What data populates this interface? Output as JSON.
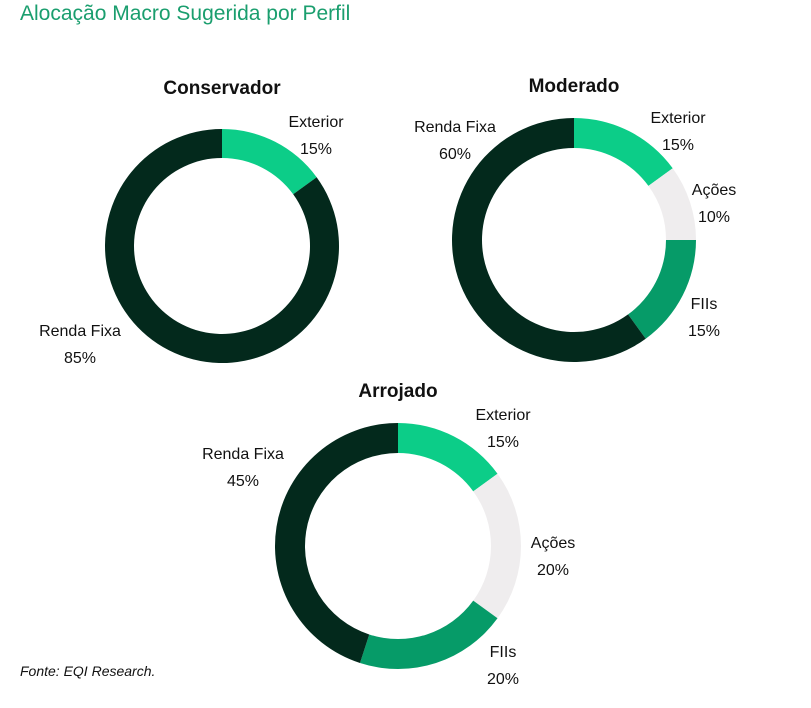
{
  "title": "Alocação Macro Sugerida por Perfil",
  "source": "Fonte: EQI Research.",
  "colors": {
    "Exterior": "#0ccd88",
    "Ações": "#efedee",
    "FIIs": "#069b68",
    "Renda Fixa": "#03291c"
  },
  "chart_data": [
    {
      "type": "pie",
      "title": "Conservador",
      "categories": [
        "Exterior",
        "Renda Fixa"
      ],
      "values": [
        15,
        85
      ],
      "labels": [
        "15%",
        "85%"
      ]
    },
    {
      "type": "pie",
      "title": "Moderado",
      "categories": [
        "Exterior",
        "Ações",
        "FIIs",
        "Renda Fixa"
      ],
      "values": [
        15,
        10,
        15,
        60
      ],
      "labels": [
        "15%",
        "10%",
        "15%",
        "60%"
      ]
    },
    {
      "type": "pie",
      "title": "Arrojado",
      "categories": [
        "Exterior",
        "Ações",
        "FIIs",
        "Renda Fixa"
      ],
      "values": [
        15,
        20,
        20,
        45
      ],
      "labels": [
        "15%",
        "20%",
        "20%",
        "45%"
      ]
    }
  ]
}
